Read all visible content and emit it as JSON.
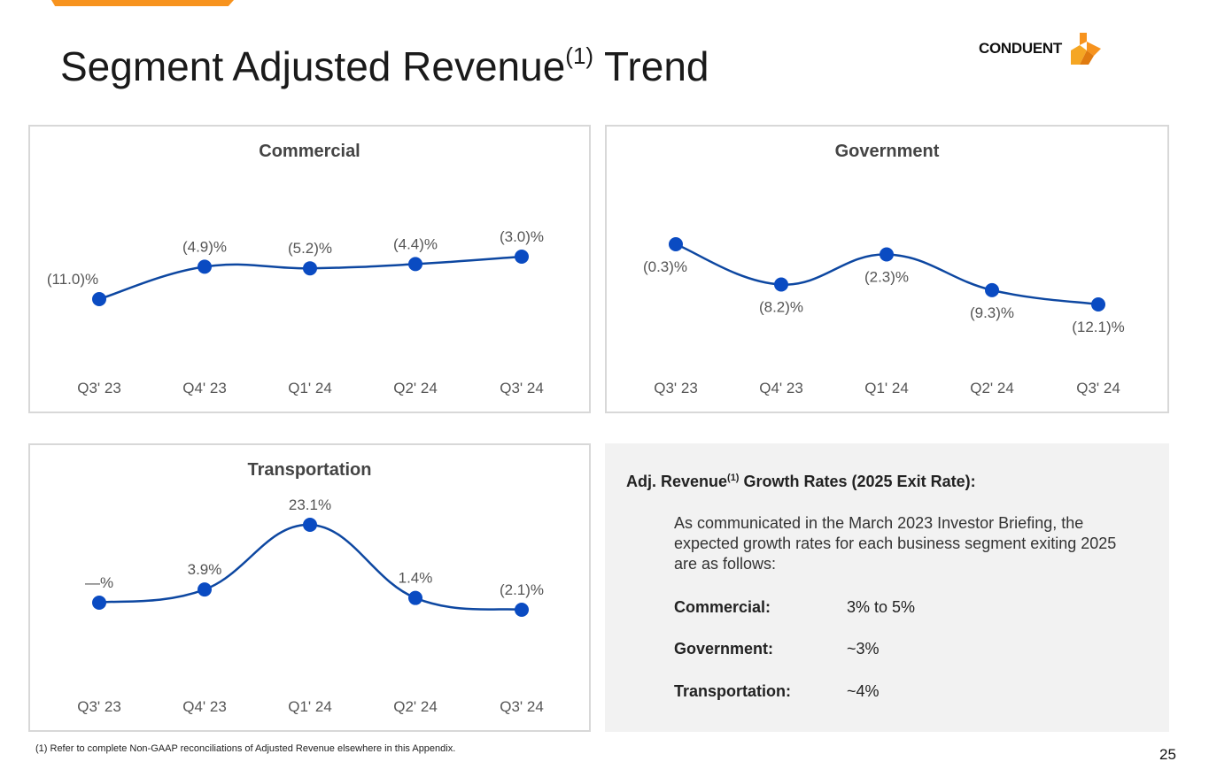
{
  "page": {
    "title": "Segment Adjusted Revenue",
    "title_sup": "(1)",
    "title_suffix": "Trend",
    "logo_text": "CONDUENT",
    "logo_icon": "conduent-logo-icon",
    "page_number": "25",
    "footnote": "(1)  Refer to complete Non-GAAP reconciliations of Adjusted Revenue elsewhere in this Appendix.",
    "accent_color": "#f7931e"
  },
  "chart_data": [
    {
      "type": "line",
      "title": "Commercial",
      "categories": [
        "Q3' 23",
        "Q4' 23",
        "Q1' 24",
        "Q2' 24",
        "Q3' 24"
      ],
      "values": [
        -11.0,
        -4.9,
        -5.2,
        -4.4,
        -3.0
      ],
      "labels": [
        "(11.0)%",
        "(4.9)%",
        "(5.2)%",
        "(4.4)%",
        "(3.0)%"
      ],
      "line_color": "#0d47a1",
      "marker_color": "#0a4bc2"
    },
    {
      "type": "line",
      "title": "Government",
      "categories": [
        "Q3' 23",
        "Q4' 23",
        "Q1' 24",
        "Q2' 24",
        "Q3' 24"
      ],
      "values": [
        -0.3,
        -8.2,
        -2.3,
        -9.3,
        -12.1
      ],
      "labels": [
        "(0.3)%",
        "(8.2)%",
        "(2.3)%",
        "(9.3)%",
        "(12.1)%"
      ],
      "line_color": "#0d47a1",
      "marker_color": "#0a4bc2"
    },
    {
      "type": "line",
      "title": "Transportation",
      "categories": [
        "Q3' 23",
        "Q4' 23",
        "Q1' 24",
        "Q2' 24",
        "Q3' 24"
      ],
      "values": [
        0.0,
        3.9,
        23.1,
        1.4,
        -2.1
      ],
      "labels": [
        "—%",
        "3.9%",
        "23.1%",
        "1.4%",
        "(2.1)%"
      ],
      "line_color": "#0d47a1",
      "marker_color": "#0a4bc2"
    }
  ],
  "info": {
    "heading": "Adj. Revenue",
    "heading_sup": "(1)",
    "heading_suffix": "Growth Rates (2025 Exit Rate):",
    "body": "As communicated in the March 2023 Investor Briefing, the expected growth rates for each business segment exiting 2025 are as follows:",
    "rows": [
      {
        "label": "Commercial:",
        "value": "3% to 5%"
      },
      {
        "label": "Government:",
        "value": "~3%"
      },
      {
        "label": "Transportation:",
        "value": "~4%"
      }
    ]
  }
}
